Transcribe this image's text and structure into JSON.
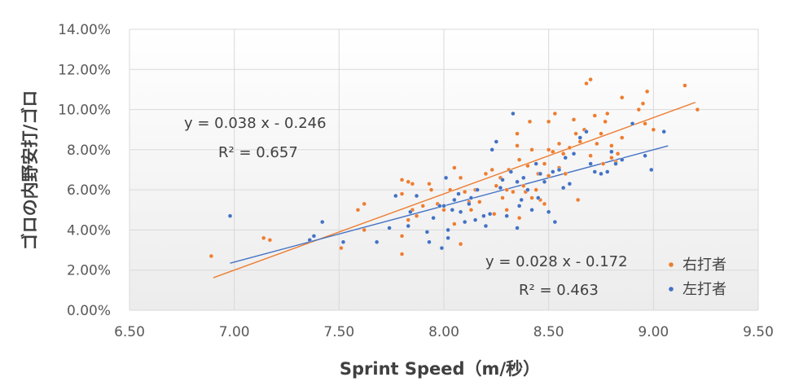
{
  "chart_data": {
    "type": "scatter",
    "title": "",
    "xlabel": "Sprint Speed（m/秒）",
    "ylabel": "ゴロの内野安打/ゴロ",
    "xlim": [
      6.5,
      9.5
    ],
    "ylim": [
      0,
      14
    ],
    "x_ticks": [
      "6.50",
      "7.00",
      "7.50",
      "8.00",
      "8.50",
      "9.00",
      "9.50"
    ],
    "y_ticks": [
      "0.00%",
      "2.00%",
      "4.00%",
      "6.00%",
      "8.00%",
      "10.00%",
      "12.00%",
      "14.00%"
    ],
    "grid": true,
    "legend_position": "bottom-right",
    "series": [
      {
        "name": "右打者",
        "color": "#ED7D31",
        "trendline": {
          "slope": 0.038,
          "intercept": -0.246,
          "x_range": [
            6.9,
            9.2
          ]
        },
        "equation": "y = 0.038 x - 0.246",
        "r2": "R² = 0.657",
        "points": [
          [
            6.89,
            2.7
          ],
          [
            7.14,
            3.6
          ],
          [
            7.17,
            3.5
          ],
          [
            7.51,
            3.1
          ],
          [
            7.59,
            5.0
          ],
          [
            7.62,
            5.3
          ],
          [
            7.62,
            4.0
          ],
          [
            7.8,
            6.5
          ],
          [
            7.8,
            5.8
          ],
          [
            7.8,
            3.7
          ],
          [
            7.8,
            2.8
          ],
          [
            7.83,
            6.4
          ],
          [
            7.83,
            4.5
          ],
          [
            7.85,
            6.3
          ],
          [
            7.85,
            5.0
          ],
          [
            7.87,
            4.7
          ],
          [
            7.9,
            5.2
          ],
          [
            7.93,
            6.3
          ],
          [
            7.94,
            6.0
          ],
          [
            7.97,
            5.3
          ],
          [
            8.0,
            5.0
          ],
          [
            8.03,
            6.0
          ],
          [
            8.05,
            4.3
          ],
          [
            8.05,
            7.1
          ],
          [
            8.08,
            3.3
          ],
          [
            8.08,
            6.6
          ],
          [
            8.1,
            5.9
          ],
          [
            8.12,
            5.4
          ],
          [
            8.13,
            5.0
          ],
          [
            8.15,
            6.0
          ],
          [
            8.17,
            5.4
          ],
          [
            8.2,
            6.8
          ],
          [
            8.23,
            7.0
          ],
          [
            8.24,
            4.8
          ],
          [
            8.25,
            6.2
          ],
          [
            8.27,
            6.6
          ],
          [
            8.28,
            5.6
          ],
          [
            8.3,
            5.0
          ],
          [
            8.3,
            6.0
          ],
          [
            8.31,
            7.0
          ],
          [
            8.33,
            5.9
          ],
          [
            8.35,
            8.8
          ],
          [
            8.35,
            8.2
          ],
          [
            8.36,
            7.5
          ],
          [
            8.36,
            4.6
          ],
          [
            8.38,
            6.2
          ],
          [
            8.39,
            5.9
          ],
          [
            8.4,
            7.2
          ],
          [
            8.41,
            9.4
          ],
          [
            8.42,
            5.6
          ],
          [
            8.42,
            8.0
          ],
          [
            8.44,
            6.0
          ],
          [
            8.45,
            6.8
          ],
          [
            8.46,
            5.5
          ],
          [
            8.48,
            7.3
          ],
          [
            8.48,
            5.3
          ],
          [
            8.5,
            8.0
          ],
          [
            8.5,
            6.7
          ],
          [
            8.5,
            9.4
          ],
          [
            8.52,
            7.9
          ],
          [
            8.53,
            9.8
          ],
          [
            8.55,
            8.3
          ],
          [
            8.55,
            7.1
          ],
          [
            8.57,
            7.8
          ],
          [
            8.58,
            6.8
          ],
          [
            8.6,
            8.1
          ],
          [
            8.62,
            9.5
          ],
          [
            8.63,
            8.8
          ],
          [
            8.64,
            5.5
          ],
          [
            8.65,
            8.4
          ],
          [
            8.67,
            9.0
          ],
          [
            8.68,
            11.3
          ],
          [
            8.7,
            11.5
          ],
          [
            8.7,
            7.7
          ],
          [
            8.72,
            9.7
          ],
          [
            8.73,
            8.3
          ],
          [
            8.75,
            8.8
          ],
          [
            8.76,
            7.3
          ],
          [
            8.77,
            9.4
          ],
          [
            8.78,
            9.8
          ],
          [
            8.8,
            7.6
          ],
          [
            8.8,
            8.2
          ],
          [
            8.82,
            7.4
          ],
          [
            8.83,
            7.8
          ],
          [
            8.85,
            10.6
          ],
          [
            8.85,
            8.6
          ],
          [
            8.93,
            10.0
          ],
          [
            8.95,
            10.3
          ],
          [
            8.96,
            9.3
          ],
          [
            8.97,
            10.9
          ],
          [
            9.0,
            9.0
          ],
          [
            9.15,
            11.2
          ],
          [
            9.21,
            10.0
          ]
        ]
      },
      {
        "name": "左打者",
        "color": "#4472C4",
        "trendline": {
          "slope": 0.028,
          "intercept": -0.172,
          "x_range": [
            6.98,
            9.07
          ]
        },
        "equation": "y = 0.028 x - 0.172",
        "r2": "R² = 0.463",
        "points": [
          [
            6.98,
            4.7
          ],
          [
            7.36,
            3.5
          ],
          [
            7.38,
            3.7
          ],
          [
            7.42,
            4.4
          ],
          [
            7.52,
            3.4
          ],
          [
            7.68,
            3.4
          ],
          [
            7.74,
            4.1
          ],
          [
            7.77,
            5.7
          ],
          [
            7.83,
            4.2
          ],
          [
            7.84,
            4.9
          ],
          [
            7.87,
            5.7
          ],
          [
            7.92,
            3.9
          ],
          [
            7.93,
            3.4
          ],
          [
            7.95,
            4.6
          ],
          [
            7.98,
            5.2
          ],
          [
            7.99,
            3.1
          ],
          [
            8.0,
            5.2
          ],
          [
            8.01,
            6.6
          ],
          [
            8.02,
            4.0
          ],
          [
            8.02,
            3.6
          ],
          [
            8.04,
            5.0
          ],
          [
            8.05,
            5.5
          ],
          [
            8.07,
            5.8
          ],
          [
            8.08,
            4.9
          ],
          [
            8.1,
            4.4
          ],
          [
            8.12,
            5.3
          ],
          [
            8.13,
            5.6
          ],
          [
            8.15,
            4.5
          ],
          [
            8.16,
            6.0
          ],
          [
            8.19,
            4.7
          ],
          [
            8.2,
            4.2
          ],
          [
            8.22,
            4.8
          ],
          [
            8.23,
            8.0
          ],
          [
            8.25,
            8.4
          ],
          [
            8.27,
            6.1
          ],
          [
            8.28,
            6.5
          ],
          [
            8.3,
            4.7
          ],
          [
            8.32,
            6.9
          ],
          [
            8.33,
            9.8
          ],
          [
            8.35,
            6.4
          ],
          [
            8.35,
            4.1
          ],
          [
            8.36,
            5.2
          ],
          [
            8.37,
            5.5
          ],
          [
            8.38,
            6.6
          ],
          [
            8.4,
            6.0
          ],
          [
            8.42,
            5.0
          ],
          [
            8.44,
            7.3
          ],
          [
            8.45,
            5.6
          ],
          [
            8.46,
            6.8
          ],
          [
            8.48,
            6.4
          ],
          [
            8.5,
            4.9
          ],
          [
            8.52,
            6.9
          ],
          [
            8.53,
            4.4
          ],
          [
            8.55,
            7.0
          ],
          [
            8.57,
            6.1
          ],
          [
            8.58,
            7.6
          ],
          [
            8.6,
            6.3
          ],
          [
            8.62,
            7.8
          ],
          [
            8.65,
            8.6
          ],
          [
            8.68,
            8.9
          ],
          [
            8.7,
            7.3
          ],
          [
            8.72,
            6.9
          ],
          [
            8.75,
            6.8
          ],
          [
            8.78,
            6.9
          ],
          [
            8.8,
            7.9
          ],
          [
            8.82,
            7.3
          ],
          [
            8.85,
            7.5
          ],
          [
            8.9,
            9.3
          ],
          [
            8.96,
            7.7
          ],
          [
            8.99,
            7.0
          ],
          [
            9.05,
            8.9
          ]
        ]
      }
    ]
  }
}
